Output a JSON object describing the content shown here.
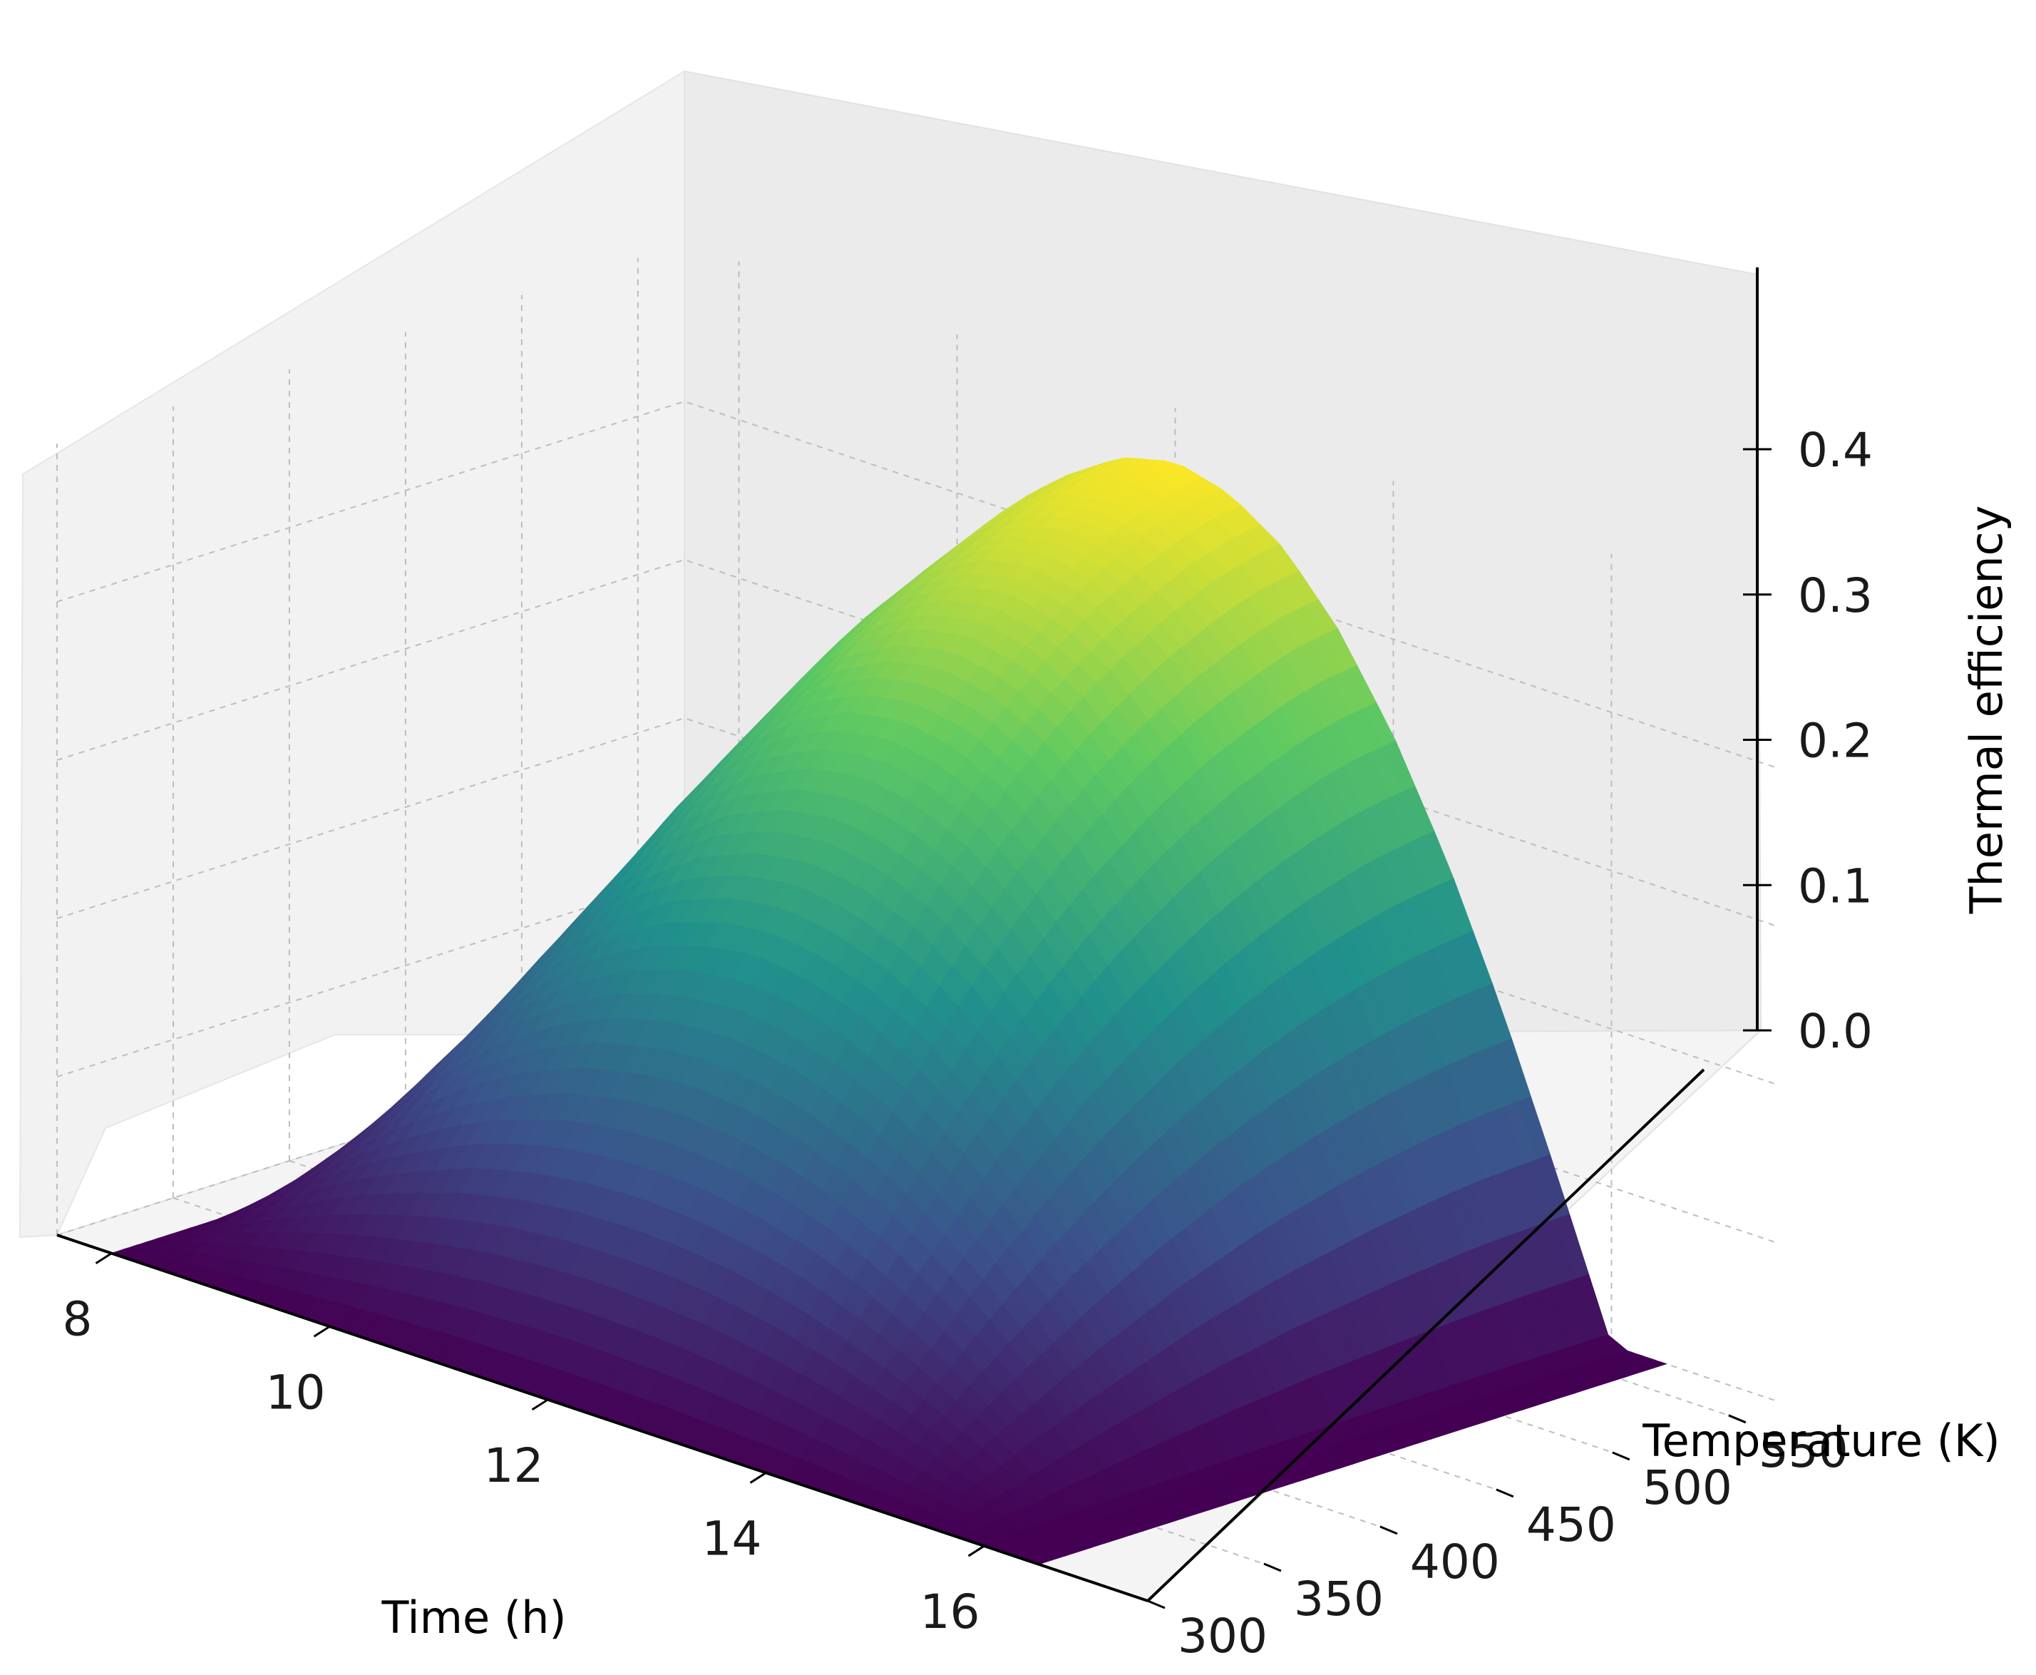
{
  "chart_data": {
    "type": "surface",
    "title": "",
    "xlabel": "Time (h)",
    "ylabel": "Temperature (K)",
    "zlabel": "Thermal efficiency",
    "x_ticks": [
      "8",
      "10",
      "12",
      "14",
      "16"
    ],
    "y_ticks": [
      "300",
      "350",
      "400",
      "450",
      "500",
      "550"
    ],
    "z_ticks": [
      "0.0",
      "0.1",
      "0.2",
      "0.3",
      "0.4"
    ],
    "xlim": [
      7.5,
      17.5
    ],
    "ylim": [
      300,
      570
    ],
    "zlim": [
      0,
      0.5
    ],
    "grid": true,
    "colormap": "viridis",
    "surface": {
      "x": [
        8,
        8.5,
        9,
        9.5,
        10,
        10.5,
        11,
        11.5,
        12,
        12.5,
        13,
        13.5,
        14,
        14.5,
        15,
        15.5,
        16,
        16.5,
        17
      ],
      "y": [
        300,
        315,
        330,
        345,
        360,
        375,
        390,
        405,
        420,
        435,
        450,
        465,
        480,
        495,
        510,
        525,
        540,
        555,
        570
      ],
      "z_rows_by_y": [
        [
          0,
          0,
          0,
          0,
          0,
          0,
          0,
          0,
          0,
          0,
          0,
          0,
          0,
          0,
          0,
          0,
          0,
          0,
          0
        ],
        [
          0,
          0.009,
          0.017,
          0.024,
          0.03,
          0.035,
          0.039,
          0.041,
          0.042,
          0.041,
          0.039,
          0.035,
          0.03,
          0.024,
          0.017,
          0.009,
          0,
          0,
          0
        ],
        [
          0,
          0.017,
          0.034,
          0.049,
          0.061,
          0.071,
          0.078,
          0.082,
          0.083,
          0.082,
          0.078,
          0.071,
          0.061,
          0.049,
          0.034,
          0.017,
          0,
          0,
          0
        ],
        [
          0,
          0.026,
          0.05,
          0.072,
          0.091,
          0.106,
          0.116,
          0.122,
          0.124,
          0.122,
          0.116,
          0.106,
          0.091,
          0.072,
          0.05,
          0.026,
          0,
          0,
          0
        ],
        [
          0,
          0.034,
          0.066,
          0.095,
          0.12,
          0.139,
          0.153,
          0.161,
          0.164,
          0.161,
          0.153,
          0.139,
          0.12,
          0.095,
          0.066,
          0.034,
          0,
          0,
          0
        ],
        [
          0,
          0.042,
          0.081,
          0.117,
          0.147,
          0.171,
          0.188,
          0.198,
          0.202,
          0.198,
          0.188,
          0.171,
          0.147,
          0.117,
          0.081,
          0.042,
          0,
          0,
          0
        ],
        [
          0,
          0.049,
          0.096,
          0.138,
          0.173,
          0.201,
          0.221,
          0.233,
          0.238,
          0.233,
          0.221,
          0.201,
          0.173,
          0.138,
          0.096,
          0.049,
          0,
          0,
          0
        ],
        [
          0,
          0.056,
          0.109,
          0.157,
          0.197,
          0.229,
          0.252,
          0.266,
          0.271,
          0.266,
          0.252,
          0.229,
          0.197,
          0.157,
          0.109,
          0.056,
          0,
          0,
          0
        ],
        [
          0,
          0.063,
          0.122,
          0.175,
          0.22,
          0.255,
          0.281,
          0.296,
          0.302,
          0.296,
          0.281,
          0.255,
          0.22,
          0.175,
          0.122,
          0.063,
          0,
          0,
          0
        ],
        [
          0,
          0.068,
          0.133,
          0.191,
          0.24,
          0.279,
          0.307,
          0.324,
          0.33,
          0.324,
          0.307,
          0.279,
          0.24,
          0.191,
          0.133,
          0.068,
          0,
          0,
          0
        ],
        [
          0,
          0.074,
          0.144,
          0.206,
          0.259,
          0.301,
          0.331,
          0.349,
          0.355,
          0.349,
          0.331,
          0.301,
          0.259,
          0.206,
          0.144,
          0.074,
          0,
          0,
          0
        ],
        [
          0,
          0.078,
          0.153,
          0.219,
          0.275,
          0.32,
          0.352,
          0.371,
          0.378,
          0.371,
          0.352,
          0.32,
          0.275,
          0.219,
          0.153,
          0.078,
          0,
          0,
          0
        ],
        [
          0,
          0.082,
          0.161,
          0.231,
          0.29,
          0.337,
          0.371,
          0.391,
          0.398,
          0.391,
          0.371,
          0.337,
          0.29,
          0.231,
          0.161,
          0.082,
          0,
          0,
          0
        ],
        [
          0,
          0.086,
          0.168,
          0.241,
          0.303,
          0.352,
          0.387,
          0.408,
          0.416,
          0.408,
          0.387,
          0.352,
          0.303,
          0.241,
          0.168,
          0.086,
          0,
          0,
          0
        ],
        [
          0,
          0.089,
          0.174,
          0.25,
          0.314,
          0.365,
          0.401,
          0.423,
          0.431,
          0.423,
          0.401,
          0.365,
          0.314,
          0.25,
          0.174,
          0.089,
          0,
          0,
          0
        ],
        [
          0,
          0.092,
          0.179,
          0.257,
          0.323,
          0.375,
          0.413,
          0.435,
          0.443,
          0.435,
          0.413,
          0.375,
          0.323,
          0.257,
          0.179,
          0.092,
          0,
          0,
          0
        ],
        [
          0,
          0.094,
          0.183,
          0.263,
          0.331,
          0.384,
          0.423,
          0.446,
          0.454,
          0.446,
          0.423,
          0.384,
          0.331,
          0.263,
          0.183,
          0.094,
          0,
          0,
          0
        ],
        [
          0,
          0.095,
          0.186,
          0.267,
          0.336,
          0.391,
          0.43,
          0.453,
          0.461,
          0.453,
          0.43,
          0.391,
          0.336,
          0.267,
          0.186,
          0.095,
          0,
          0,
          0
        ],
        [
          0,
          0.096,
          0.188,
          0.27,
          0.339,
          0.394,
          0.434,
          0.457,
          0.466,
          0.457,
          0.434,
          0.394,
          0.339,
          0.27,
          0.188,
          0.096,
          0,
          0,
          0
        ]
      ]
    }
  }
}
